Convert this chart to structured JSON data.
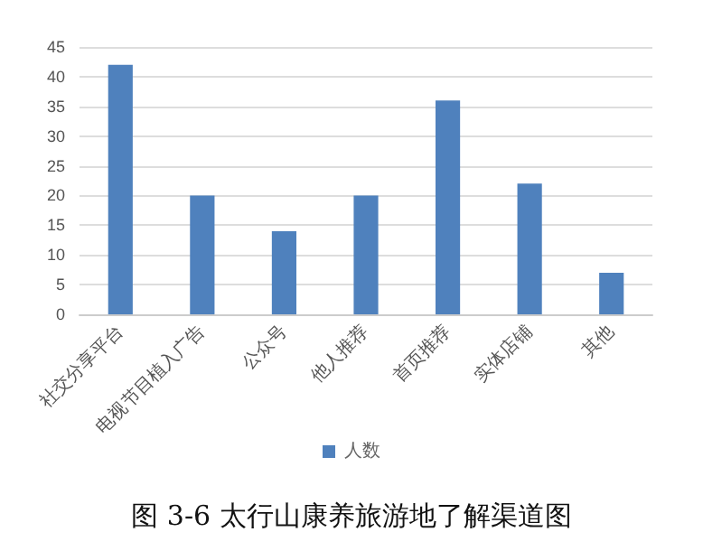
{
  "chart_data": {
    "type": "bar",
    "title": "图 3-6 太行山康养旅游地了解渠道图",
    "categories": [
      "社交分享平台",
      "电视节目植入广告",
      "公众号",
      "他人推荐",
      "首页推荐",
      "实体店铺",
      "其他"
    ],
    "series": [
      {
        "name": "人数",
        "color": "#4f81bd",
        "values": [
          42,
          20,
          14,
          20,
          36,
          22,
          7
        ]
      }
    ],
    "ylim": [
      0,
      45
    ],
    "yticks": [
      0,
      5,
      10,
      15,
      20,
      25,
      30,
      35,
      40,
      45
    ],
    "grid": "y",
    "legend": "bottom"
  }
}
